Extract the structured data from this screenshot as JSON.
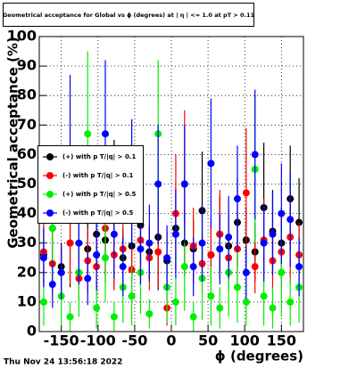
{
  "chart_data": {
    "type": "scatter",
    "title": "Geometrical acceptance for Global vs ϕ (degrees) at | η | <= 1.0 at pT > 0.11",
    "x_label": "ϕ (degrees)",
    "y_label": "Geometrical acceptance (%)",
    "timestamp": "Thu Nov 24 13:56:18 2022",
    "xlim": [
      -180,
      180
    ],
    "ylim": [
      0,
      100
    ],
    "xticks": [
      -150,
      -100,
      -50,
      0,
      50,
      100,
      150
    ],
    "yticks": [
      0,
      10,
      20,
      30,
      40,
      50,
      60,
      70,
      80,
      90,
      100
    ],
    "grid": true,
    "legend": "left",
    "x": [
      -174,
      -162,
      -150,
      -138,
      -126,
      -114,
      -102,
      -90,
      -78,
      -66,
      -54,
      -42,
      -30,
      -18,
      -6,
      6,
      18,
      30,
      42,
      54,
      66,
      78,
      90,
      102,
      114,
      126,
      138,
      150,
      162,
      174
    ],
    "series": [
      {
        "name": "(+) with p T/|q| > 0.1",
        "color": "#000000",
        "values": [
          26,
          35,
          22,
          30,
          38,
          28,
          33,
          31,
          40,
          25,
          29,
          36,
          27,
          32,
          24,
          35,
          30,
          28,
          41,
          26,
          33,
          29,
          37,
          31,
          27,
          42,
          34,
          30,
          45,
          37
        ],
        "errors": [
          10,
          12,
          8,
          15,
          20,
          9,
          11,
          14,
          25,
          10,
          12,
          13,
          9,
          18,
          10,
          14,
          11,
          10,
          20,
          9,
          13,
          12,
          15,
          11,
          10,
          22,
          14,
          12,
          18,
          15
        ]
      },
      {
        "name": "(-) with p T/|q| > 0.1",
        "color": "#ff0000",
        "values": [
          27,
          23,
          20,
          30,
          18,
          24,
          22,
          35,
          26,
          28,
          21,
          31,
          25,
          27,
          8,
          40,
          50,
          29,
          23,
          26,
          33,
          25,
          28,
          47,
          22,
          31,
          24,
          27,
          32,
          26
        ],
        "errors": [
          12,
          10,
          9,
          14,
          8,
          11,
          10,
          16,
          12,
          13,
          9,
          15,
          11,
          12,
          6,
          20,
          25,
          13,
          10,
          12,
          15,
          11,
          13,
          22,
          9,
          14,
          11,
          12,
          16,
          11
        ]
      },
      {
        "name": "(+) with p T/|q| > 0.5",
        "color": "#00ee00",
        "values": [
          10,
          35,
          12,
          5,
          20,
          67,
          8,
          25,
          5,
          15,
          12,
          20,
          6,
          67,
          15,
          10,
          22,
          5,
          18,
          12,
          8,
          20,
          15,
          10,
          55,
          12,
          8,
          20,
          10,
          15
        ],
        "errors": [
          8,
          18,
          10,
          5,
          15,
          28,
          7,
          15,
          5,
          12,
          10,
          14,
          5,
          25,
          12,
          8,
          15,
          5,
          14,
          10,
          7,
          15,
          12,
          8,
          25,
          10,
          7,
          15,
          8,
          12
        ]
      },
      {
        "name": "(-) with p T/|q| > 0.5",
        "color": "#0000ff",
        "values": [
          25,
          16,
          20,
          62,
          30,
          18,
          26,
          67,
          33,
          22,
          50,
          28,
          30,
          50,
          25,
          33,
          50,
          22,
          30,
          57,
          28,
          32,
          45,
          20,
          60,
          30,
          33,
          40,
          38,
          22
        ],
        "errors": [
          10,
          8,
          9,
          25,
          14,
          9,
          12,
          25,
          15,
          10,
          22,
          12,
          13,
          20,
          11,
          15,
          20,
          10,
          13,
          22,
          12,
          14,
          18,
          9,
          22,
          13,
          14,
          17,
          16,
          10
        ]
      }
    ]
  }
}
